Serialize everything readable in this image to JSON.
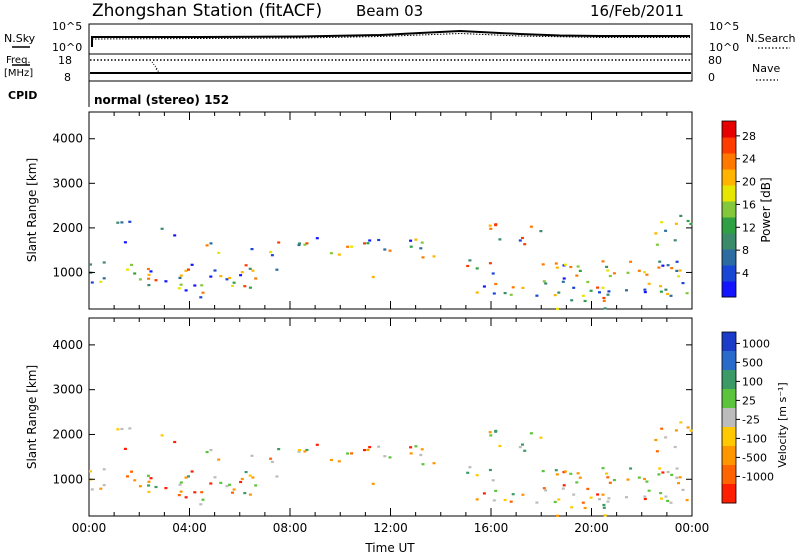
{
  "header": {
    "station": "Zhongshan Station (fitACF)",
    "beam": "Beam 03",
    "date": "16/Feb/2011"
  },
  "top_panels": {
    "nsky_label": "N.Sky",
    "nsky_ticks": [
      "10^5",
      "10^0"
    ],
    "nsearch_label": "N.Search",
    "nsearch_ticks": [
      "10^5",
      "10^0"
    ],
    "freq_label_1": "Freq.",
    "freq_label_2": "[MHz]",
    "freq_ticks": [
      "18",
      "8"
    ],
    "nave_label": "Nave",
    "nave_ticks": [
      "80",
      "0"
    ],
    "cpid_label": "CPID",
    "cpid_text": "normal (stereo) 152"
  },
  "chart_data": [
    {
      "type": "heatmap",
      "panel": "power",
      "ylabel": "Slant Range [km]",
      "xlabel": "",
      "x_ticks": [
        "00:00",
        "04:00",
        "08:00",
        "12:00",
        "16:00",
        "20:00",
        "00:00"
      ],
      "y_ticks": [
        1000,
        2000,
        3000,
        4000
      ],
      "ylim": [
        180,
        4600
      ],
      "colorbar_label": "Power [dB]",
      "colorbar_ticks": [
        4,
        8,
        12,
        16,
        20,
        24,
        28
      ],
      "colorbar_colors": [
        "#1414ff",
        "#1a46d6",
        "#2c6ca0",
        "#3b8a6a",
        "#2fa044",
        "#82c83a",
        "#e6e600",
        "#ffb400",
        "#ff7800",
        "#ff3c00",
        "#e60000"
      ]
    },
    {
      "type": "heatmap",
      "panel": "velocity",
      "ylabel": "Slant Range [km]",
      "xlabel": "Time UT",
      "x_ticks": [
        "00:00",
        "04:00",
        "08:00",
        "12:00",
        "16:00",
        "20:00",
        "00:00"
      ],
      "y_ticks": [
        1000,
        2000,
        3000,
        4000
      ],
      "ylim": [
        180,
        4600
      ],
      "colorbar_label": "Velocity [m s⁻¹]",
      "colorbar_ticks": [
        "1000",
        "500",
        "100",
        "25",
        "-25",
        "-100",
        "-500",
        "-1000"
      ],
      "colorbar_colors": [
        "#1a3cc8",
        "#2a6acb",
        "#3b9a66",
        "#5cc43c",
        "#bcbcbc",
        "#ffc800",
        "#ff9600",
        "#ff6400",
        "#ff1e00"
      ]
    }
  ]
}
